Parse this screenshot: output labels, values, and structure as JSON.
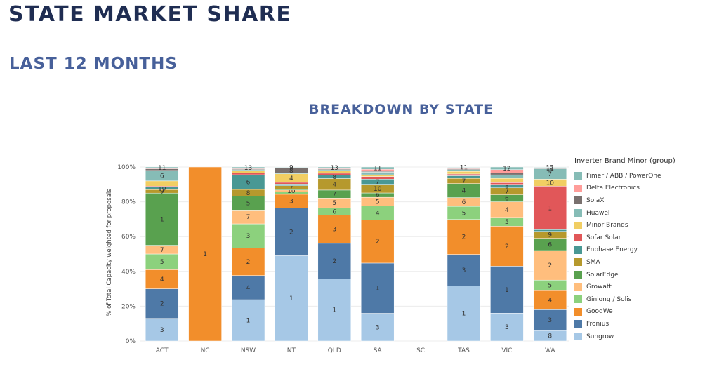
{
  "header": {
    "title": "STATE MARKET SHARE",
    "subtitle": "LAST 12 MONTHS"
  },
  "chart_data": {
    "type": "bar",
    "stacked": true,
    "title": "BREAKDOWN BY STATE",
    "xlabel": "",
    "ylabel": "% of Total Capacity weighted for proposals",
    "ylim": [
      0,
      100
    ],
    "y_ticks": [
      "0%",
      "20%",
      "40%",
      "60%",
      "80%",
      "100%"
    ],
    "grid": true,
    "legend_position": "right",
    "legend_title": "Inverter Brand Minor (group)",
    "categories": [
      "ACT",
      "NC",
      "NSW",
      "NT",
      "QLD",
      "SA",
      "SC",
      "TAS",
      "VIC",
      "WA"
    ],
    "series": [
      {
        "name": "Sungrow",
        "color": "#a6c8e6",
        "values": [
          13,
          0,
          24,
          50,
          35,
          16,
          0,
          31.5,
          16,
          6
        ],
        "ranks": [
          "3",
          "",
          "1",
          "1",
          "1",
          "3",
          "",
          "1",
          "3",
          "8"
        ]
      },
      {
        "name": "Fronius",
        "color": "#4e79a7",
        "values": [
          17,
          0,
          14,
          28,
          20,
          29,
          0,
          18,
          27,
          12
        ],
        "ranks": [
          "2",
          "",
          "4",
          "2",
          "2",
          "1",
          "",
          "3",
          "1",
          "3"
        ]
      },
      {
        "name": "GoodWe",
        "color": "#f28e2b",
        "values": [
          11,
          100,
          16,
          8,
          16,
          25,
          0,
          20,
          23,
          11
        ],
        "ranks": [
          "4",
          "1",
          "2",
          "3",
          "3",
          "2",
          "",
          "2",
          "2",
          "4"
        ]
      },
      {
        "name": "Ginlong / Solis",
        "color": "#8cd17d",
        "values": [
          9,
          0,
          14,
          1.5,
          4,
          8,
          0,
          7.5,
          5,
          6
        ],
        "ranks": [
          "5",
          "",
          "3",
          "",
          "6",
          "4",
          "",
          "5",
          "5",
          "5"
        ]
      },
      {
        "name": "Growatt",
        "color": "#ffbe7d",
        "values": [
          5,
          0,
          8,
          1,
          5.5,
          5,
          0,
          5,
          9,
          17
        ],
        "ranks": [
          "7",
          "",
          "7",
          "10",
          "5",
          "5",
          "",
          "6",
          "4",
          "2"
        ]
      },
      {
        "name": "SolarEdge",
        "color": "#59a14f",
        "values": [
          30,
          0,
          8,
          0.5,
          4.5,
          2.5,
          0,
          8,
          4,
          7
        ],
        "ranks": [
          "1",
          "",
          "5",
          "",
          "7",
          "6",
          "",
          "4",
          "6",
          "6"
        ]
      },
      {
        "name": "SMA",
        "color": "#b6992d",
        "values": [
          2,
          0,
          4,
          2,
          6.5,
          5,
          0,
          3,
          4,
          4
        ],
        "ranks": [
          "9",
          "",
          "8",
          "7",
          "4",
          "10",
          "",
          "7",
          "7",
          "9"
        ]
      },
      {
        "name": "Enphase Energy",
        "color": "#499894",
        "values": [
          1.5,
          0,
          8.5,
          1,
          2,
          3,
          0,
          1.5,
          2,
          1
        ],
        "ranks": [
          "10",
          "",
          "6",
          "",
          "8",
          "7",
          "",
          "",
          "8",
          ""
        ]
      },
      {
        "name": "Sofar Solar",
        "color": "#e15759",
        "values": [
          0.5,
          0,
          1,
          1,
          1,
          1.5,
          0,
          1,
          1,
          25
        ],
        "ranks": [
          "",
          "",
          "",
          "",
          "",
          "",
          "",
          "",
          "",
          "1"
        ]
      },
      {
        "name": "Minor Brands",
        "color": "#f1ce63",
        "values": [
          3,
          0,
          1.5,
          5,
          1.5,
          1,
          0,
          1.5,
          2.5,
          4
        ],
        "ranks": [
          "",
          "",
          "",
          "4",
          "",
          "",
          "",
          "",
          "",
          "10"
        ]
      },
      {
        "name": "Huawei",
        "color": "#86bcb6",
        "values": [
          6,
          0,
          0.5,
          0.5,
          0.5,
          1.5,
          0,
          1,
          2,
          6
        ],
        "ranks": [
          "6",
          "",
          "",
          "",
          "",
          "",
          "",
          "",
          "",
          "7"
        ]
      },
      {
        "name": "SolaX",
        "color": "#79706e",
        "values": [
          1,
          0,
          0.5,
          3,
          0.5,
          0.5,
          0,
          0.5,
          1,
          0.5
        ],
        "ranks": [
          "",
          "",
          "",
          "8",
          "",
          "",
          "",
          "",
          "",
          "11"
        ]
      },
      {
        "name": "Delta Electronics",
        "color": "#ff9d9a",
        "values": [
          0.3,
          0,
          0.3,
          0.2,
          0.3,
          1.2,
          0,
          0.7,
          2,
          0.2
        ],
        "ranks": [
          "",
          "",
          "",
          "",
          "",
          "",
          "",
          "",
          "",
          ""
        ]
      },
      {
        "name": "Fimer / ABB / PowerOne",
        "color": "#86bcb6",
        "values": [
          0.7,
          0,
          0.7,
          0.3,
          0.7,
          1.3,
          0,
          0.3,
          1.5,
          0.3
        ],
        "ranks": [
          "11",
          "",
          "13",
          "9",
          "13",
          "11",
          "",
          "11",
          "12",
          "12"
        ]
      }
    ]
  }
}
